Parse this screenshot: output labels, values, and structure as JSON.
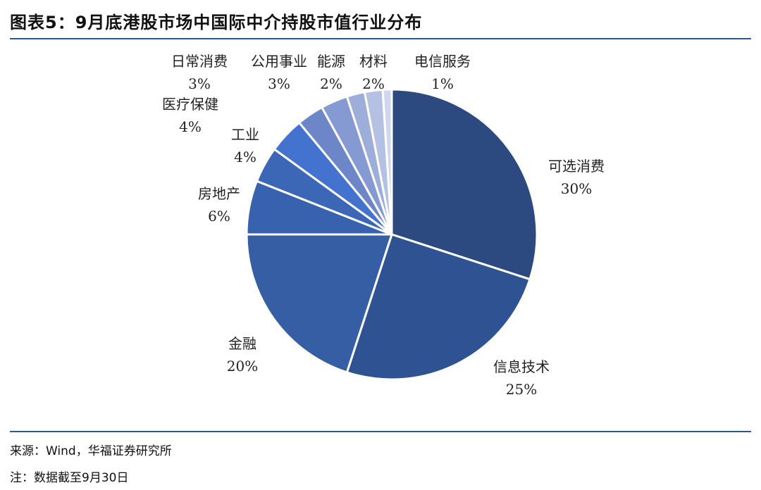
{
  "title": "图表5：9月底港股市场中国际中介持股市值行业分布",
  "source": "来源：Wind，华福证券研究所",
  "note": "注：数据截至9月30日",
  "chart_data": {
    "type": "pie",
    "title": "图表5：9月底港股市场中国际中介持股市值行业分布",
    "start_angle_deg": 0,
    "direction": "clockwise",
    "slices": [
      {
        "label": "可选消费",
        "value": 30,
        "value_label": "30%",
        "color": "#2c4a80"
      },
      {
        "label": "信息技术",
        "value": 25,
        "value_label": "25%",
        "color": "#2f5293"
      },
      {
        "label": "金融",
        "value": 20,
        "value_label": "20%",
        "color": "#355ea5"
      },
      {
        "label": "房地产",
        "value": 6,
        "value_label": "6%",
        "color": "#3862ad"
      },
      {
        "label": "工业",
        "value": 4,
        "value_label": "4%",
        "color": "#3c66b6"
      },
      {
        "label": "医疗保健",
        "value": 4,
        "value_label": "4%",
        "color": "#4473cf"
      },
      {
        "label": "日常消费",
        "value": 3,
        "value_label": "3%",
        "color": "#6d86c8"
      },
      {
        "label": "公用事业",
        "value": 3,
        "value_label": "3%",
        "color": "#8599d2"
      },
      {
        "label": "能源",
        "value": 2,
        "value_label": "2%",
        "color": "#9eaedb"
      },
      {
        "label": "材料",
        "value": 2,
        "value_label": "2%",
        "color": "#b5c1e3"
      },
      {
        "label": "电信服务",
        "value": 1,
        "value_label": "1%",
        "color": "#cfd7ee"
      }
    ]
  }
}
